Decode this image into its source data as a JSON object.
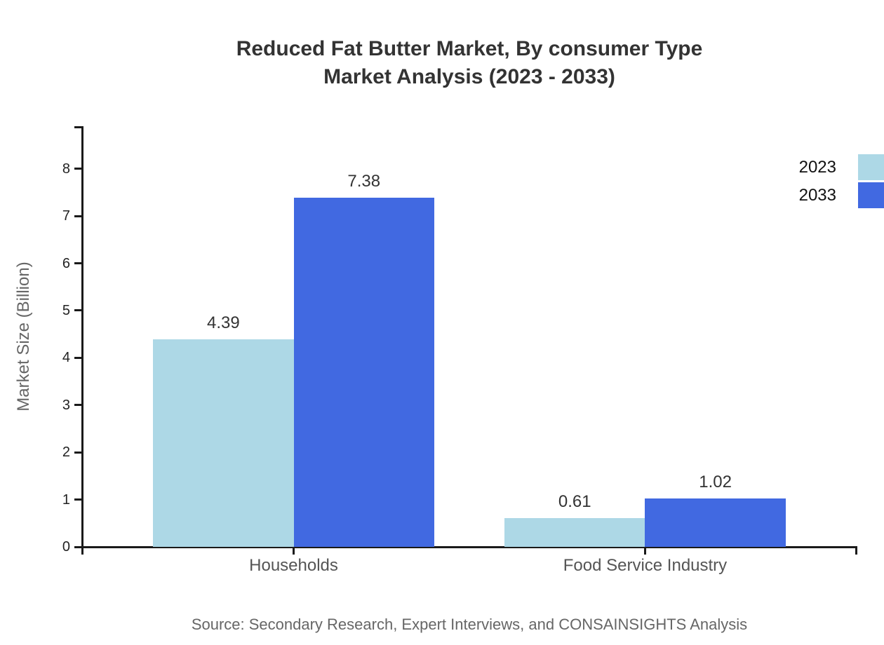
{
  "page": {
    "background_color": "#ffffff",
    "text_color_title": "#333333",
    "text_color_axis": "#555555",
    "text_color_muted": "#666666"
  },
  "chart_data": {
    "type": "bar",
    "title": "Reduced Fat Butter Market, By consumer Type",
    "subtitle": "Market Analysis (2023 - 2033)",
    "xlabel": "",
    "ylabel": "Market Size (Billion)",
    "categories": [
      "Households",
      "Food Service Industry"
    ],
    "series": [
      {
        "name": "2023",
        "color": "#ADD8E6",
        "values": [
          4.39,
          0.61
        ]
      },
      {
        "name": "2033",
        "color": "#4169E1",
        "values": [
          7.38,
          1.02
        ]
      }
    ],
    "ylim": [
      0,
      8.9
    ],
    "yticks": [
      0,
      1,
      2,
      3,
      4,
      5,
      6,
      7,
      8
    ],
    "grid": false,
    "legend_position": "top-right",
    "source": "Source: Secondary Research, Expert Interviews, and CONSAINSIGHTS Analysis"
  }
}
